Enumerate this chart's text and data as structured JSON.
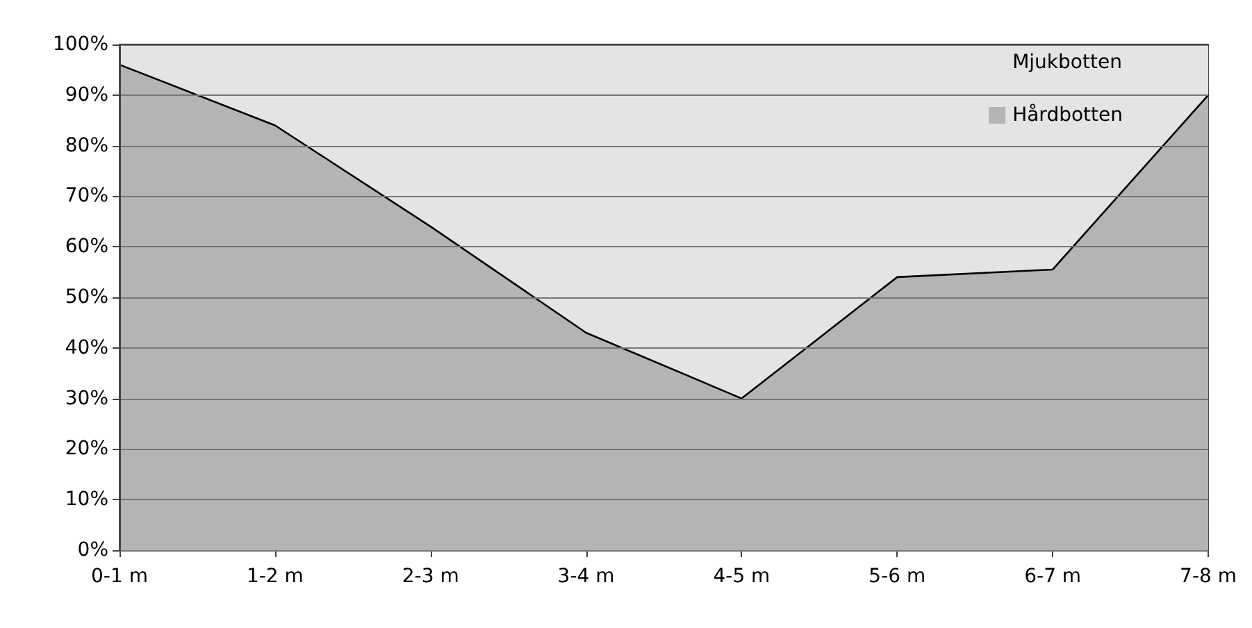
{
  "chart_data": {
    "type": "area",
    "stacked": true,
    "categories": [
      "0-1 m",
      "1-2 m",
      "2-3 m",
      "3-4 m",
      "4-5 m",
      "5-6 m",
      "6-7 m",
      "7-8 m"
    ],
    "series": [
      {
        "name": "Hårdbotten",
        "color": "#b4b4b4",
        "values": [
          96,
          84,
          64,
          43,
          30,
          54,
          55.5,
          90
        ]
      },
      {
        "name": "Mjukbotten",
        "color": "#e4e4e4",
        "values": [
          4,
          16,
          36,
          57,
          70,
          46,
          44.5,
          10
        ]
      }
    ],
    "ylim": [
      0,
      100
    ],
    "yticks": [
      {
        "value": 0,
        "label": "0%"
      },
      {
        "value": 10,
        "label": "10%"
      },
      {
        "value": 20,
        "label": "20%"
      },
      {
        "value": 30,
        "label": "30%"
      },
      {
        "value": 40,
        "label": "40%"
      },
      {
        "value": 50,
        "label": "50%"
      },
      {
        "value": 60,
        "label": "60%"
      },
      {
        "value": 70,
        "label": "70%"
      },
      {
        "value": 80,
        "label": "80%"
      },
      {
        "value": 90,
        "label": "90%"
      },
      {
        "value": 100,
        "label": "100%"
      }
    ],
    "grid": "y",
    "legend": "top right"
  }
}
